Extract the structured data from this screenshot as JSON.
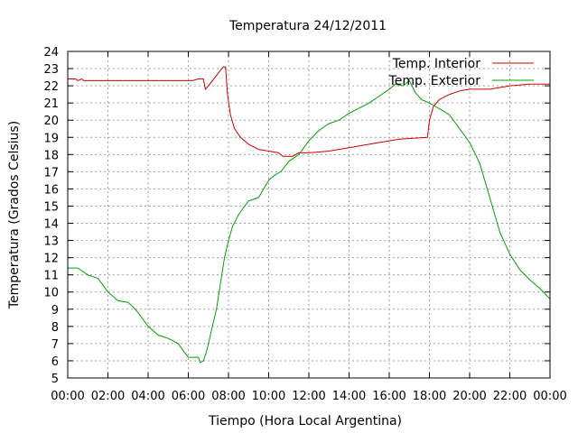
{
  "chart_data": {
    "type": "line",
    "title": "Temperatura 24/12/2011",
    "xlabel": "Tiempo (Hora Local Argentina)",
    "ylabel": "Temperatura (Grados Celsius)",
    "xlim": [
      0,
      24
    ],
    "ylim": [
      5,
      24
    ],
    "x_tick_labels": [
      "00:00",
      "02:00",
      "04:00",
      "06:00",
      "08:00",
      "10:00",
      "12:00",
      "14:00",
      "16:00",
      "18:00",
      "20:00",
      "22:00",
      "00:00"
    ],
    "y_ticks": [
      5,
      6,
      7,
      8,
      9,
      10,
      11,
      12,
      13,
      14,
      15,
      16,
      17,
      18,
      19,
      20,
      21,
      22,
      23,
      24
    ],
    "grid": true,
    "legend_position": "top-right",
    "series": [
      {
        "name": "Temp. Interior",
        "color": "#d00000",
        "points": [
          [
            0.0,
            22.4
          ],
          [
            0.4,
            22.4
          ],
          [
            0.5,
            22.3
          ],
          [
            0.7,
            22.4
          ],
          [
            0.8,
            22.3
          ],
          [
            2.0,
            22.3
          ],
          [
            4.0,
            22.3
          ],
          [
            5.5,
            22.3
          ],
          [
            6.2,
            22.3
          ],
          [
            6.5,
            22.4
          ],
          [
            6.75,
            22.4
          ],
          [
            6.85,
            21.8
          ],
          [
            7.0,
            22.0
          ],
          [
            7.2,
            22.3
          ],
          [
            7.4,
            22.6
          ],
          [
            7.6,
            22.9
          ],
          [
            7.75,
            23.1
          ],
          [
            7.85,
            23.1
          ],
          [
            7.95,
            21.5
          ],
          [
            8.1,
            20.3
          ],
          [
            8.3,
            19.5
          ],
          [
            8.6,
            19.0
          ],
          [
            9.0,
            18.6
          ],
          [
            9.5,
            18.3
          ],
          [
            10.0,
            18.2
          ],
          [
            10.5,
            18.1
          ],
          [
            10.7,
            17.9
          ],
          [
            11.2,
            17.9
          ],
          [
            11.5,
            18.1
          ],
          [
            12.0,
            18.1
          ],
          [
            13.0,
            18.2
          ],
          [
            14.0,
            18.4
          ],
          [
            15.0,
            18.6
          ],
          [
            16.0,
            18.8
          ],
          [
            16.5,
            18.9
          ],
          [
            17.9,
            19.0
          ],
          [
            18.0,
            20.0
          ],
          [
            18.2,
            20.8
          ],
          [
            18.5,
            21.2
          ],
          [
            19.0,
            21.5
          ],
          [
            19.5,
            21.7
          ],
          [
            20.0,
            21.8
          ],
          [
            21.0,
            21.8
          ],
          [
            22.0,
            22.0
          ],
          [
            23.0,
            22.1
          ],
          [
            24.0,
            22.1
          ]
        ]
      },
      {
        "name": "Temp. Exterior",
        "color": "#00a000",
        "points": [
          [
            0.0,
            11.4
          ],
          [
            0.5,
            11.4
          ],
          [
            1.0,
            11.0
          ],
          [
            1.5,
            10.8
          ],
          [
            2.0,
            10.0
          ],
          [
            2.3,
            9.7
          ],
          [
            2.5,
            9.5
          ],
          [
            3.0,
            9.4
          ],
          [
            3.2,
            9.2
          ],
          [
            3.5,
            8.8
          ],
          [
            4.0,
            8.0
          ],
          [
            4.5,
            7.5
          ],
          [
            5.0,
            7.3
          ],
          [
            5.5,
            7.0
          ],
          [
            5.8,
            6.5
          ],
          [
            6.0,
            6.2
          ],
          [
            6.5,
            6.2
          ],
          [
            6.6,
            5.9
          ],
          [
            6.75,
            6.0
          ],
          [
            6.9,
            6.5
          ],
          [
            7.0,
            7.0
          ],
          [
            7.2,
            8.0
          ],
          [
            7.4,
            9.0
          ],
          [
            7.6,
            10.5
          ],
          [
            7.8,
            12.0
          ],
          [
            8.0,
            13.0
          ],
          [
            8.2,
            13.8
          ],
          [
            8.5,
            14.5
          ],
          [
            8.8,
            15.0
          ],
          [
            9.0,
            15.3
          ],
          [
            9.5,
            15.5
          ],
          [
            10.0,
            16.5
          ],
          [
            10.3,
            16.8
          ],
          [
            10.6,
            17.0
          ],
          [
            11.0,
            17.6
          ],
          [
            11.5,
            18.0
          ],
          [
            12.0,
            18.8
          ],
          [
            12.5,
            19.4
          ],
          [
            13.0,
            19.8
          ],
          [
            13.5,
            20.0
          ],
          [
            14.0,
            20.4
          ],
          [
            14.5,
            20.7
          ],
          [
            15.0,
            21.0
          ],
          [
            15.5,
            21.4
          ],
          [
            16.0,
            21.8
          ],
          [
            16.3,
            22.1
          ],
          [
            16.7,
            22.0
          ],
          [
            17.0,
            22.3
          ],
          [
            17.3,
            21.6
          ],
          [
            17.6,
            21.2
          ],
          [
            18.0,
            21.0
          ],
          [
            18.3,
            20.8
          ],
          [
            18.6,
            20.6
          ],
          [
            19.0,
            20.3
          ],
          [
            19.5,
            19.5
          ],
          [
            20.0,
            18.7
          ],
          [
            20.5,
            17.5
          ],
          [
            21.0,
            15.5
          ],
          [
            21.5,
            13.5
          ],
          [
            22.0,
            12.2
          ],
          [
            22.5,
            11.3
          ],
          [
            23.0,
            10.7
          ],
          [
            23.5,
            10.2
          ],
          [
            24.0,
            9.6
          ]
        ]
      }
    ]
  }
}
